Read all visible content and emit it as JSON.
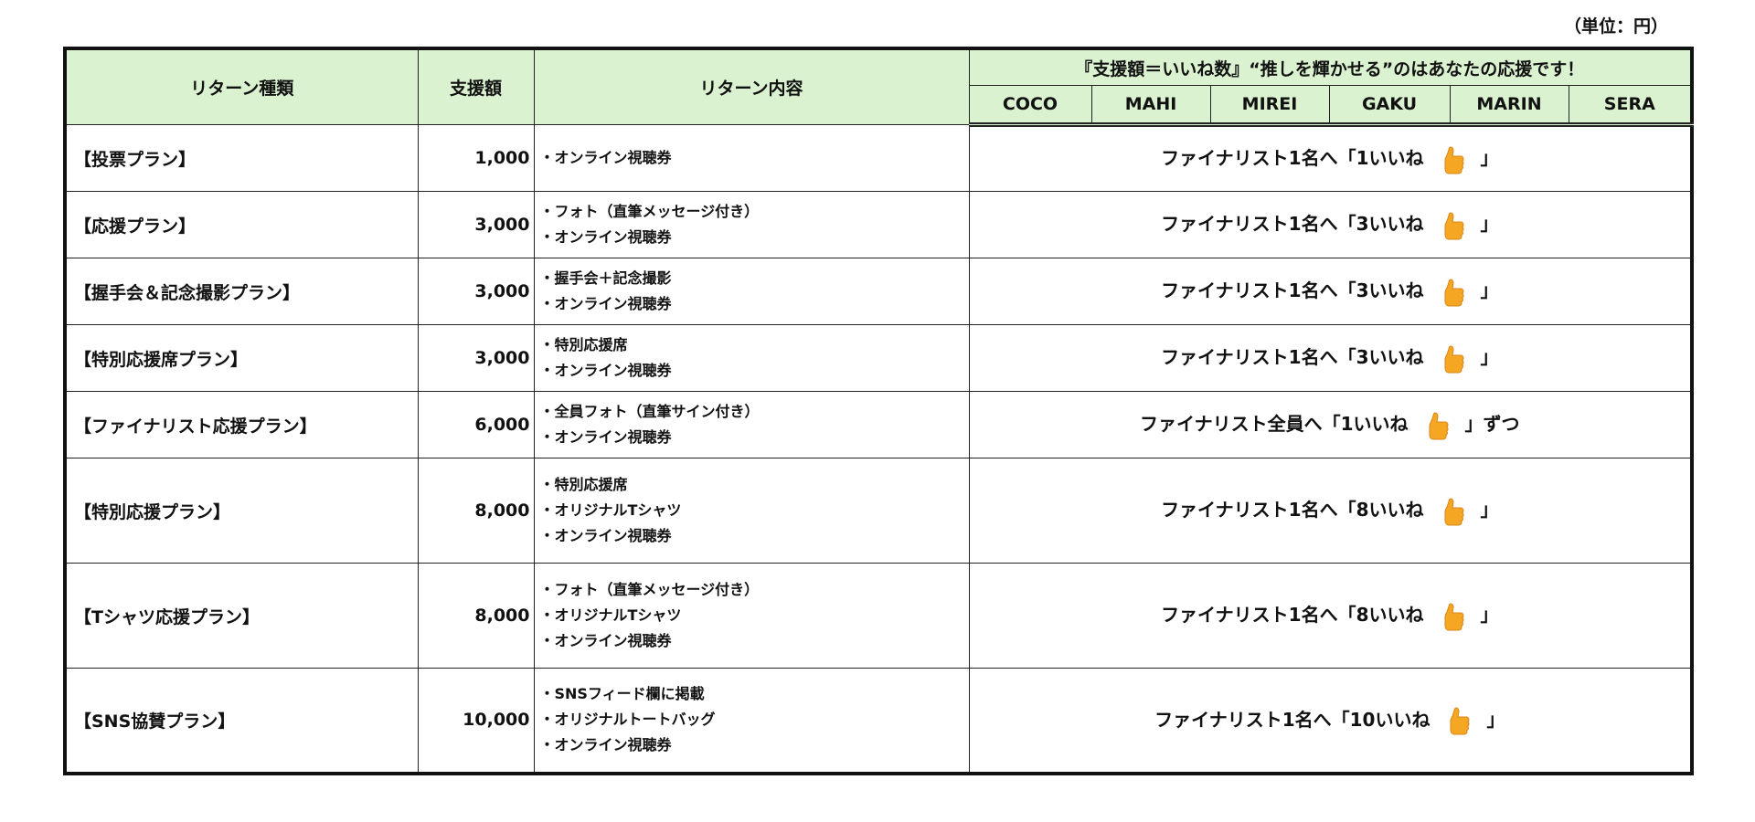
{
  "unit_label": "（単位：円）",
  "header": {
    "col_type": "リターン種類",
    "col_amount": "支援額",
    "col_content": "リターン内容",
    "slogan": "『支援額＝いいね数』“推しを輝かせる”のはあなたの応援です！",
    "finalists": [
      "COCO",
      "MAHI",
      "MIREI",
      "GAKU",
      "MARIN",
      "SERA"
    ]
  },
  "thumb_icon": "thumbs-up-icon",
  "thumb_color": "#f5a623",
  "rows": [
    {
      "plan": "【投票プラン】",
      "amount": "1,000",
      "items": [
        "・オンライン視聴券"
      ],
      "likes_pre": "ファイナリスト1名へ「1いいね",
      "likes_post": "」"
    },
    {
      "plan": "【応援プラン】",
      "amount": "3,000",
      "items": [
        "・フォト（直筆メッセージ付き）",
        "・オンライン視聴券"
      ],
      "likes_pre": "ファイナリスト1名へ「3いいね",
      "likes_post": "」"
    },
    {
      "plan": "【握手会＆記念撮影プラン】",
      "amount": "3,000",
      "items": [
        "・握手会＋記念撮影",
        "・オンライン視聴券"
      ],
      "likes_pre": "ファイナリスト1名へ「3いいね",
      "likes_post": "」"
    },
    {
      "plan": "【特別応援席プラン】",
      "amount": "3,000",
      "items": [
        "・特別応援席",
        "・オンライン視聴券"
      ],
      "likes_pre": "ファイナリスト1名へ「3いいね",
      "likes_post": "」"
    },
    {
      "plan": "【ファイナリスト応援プラン】",
      "amount": "6,000",
      "items": [
        "・全員フォト（直筆サイン付き）",
        "・オンライン視聴券"
      ],
      "likes_pre": "ファイナリスト全員へ「1いいね",
      "likes_post": "」ずつ"
    },
    {
      "plan": "【特別応援プラン】",
      "amount": "8,000",
      "items": [
        "・特別応援席",
        "・オリジナルTシャツ",
        "・オンライン視聴券"
      ],
      "likes_pre": "ファイナリスト1名へ「8いいね",
      "likes_post": "」"
    },
    {
      "plan": "【Tシャツ応援プラン】",
      "amount": "8,000",
      "items": [
        "・フォト（直筆メッセージ付き）",
        "・オリジナルTシャツ",
        "・オンライン視聴券"
      ],
      "likes_pre": "ファイナリスト1名へ「8いいね",
      "likes_post": "」"
    },
    {
      "plan": "【SNS協賛プラン】",
      "amount": "10,000",
      "items": [
        "・SNSフィード欄に掲載",
        "・オリジナルトートバッグ",
        "・オンライン視聴券"
      ],
      "likes_pre": "ファイナリスト1名へ「10いいね",
      "likes_post": "」"
    }
  ]
}
